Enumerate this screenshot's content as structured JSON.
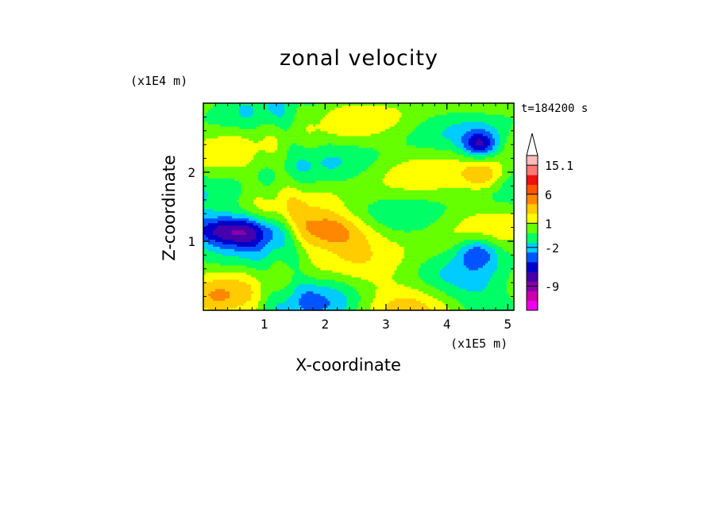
{
  "chart_data": {
    "type": "heatmap",
    "title": "zonal velocity",
    "xlabel": "X-coordinate",
    "ylabel": "Z-coordinate",
    "x_unit_label": "(x1E5 m)",
    "y_unit_label": "(x1E4 m)",
    "time_label": "t=184200 s",
    "xlim": [
      0,
      5.1
    ],
    "ylim": [
      0,
      3.0
    ],
    "x_ticks": [
      1,
      2,
      3,
      4,
      5
    ],
    "y_ticks": [
      1,
      2
    ],
    "x_minor_step": 0.2,
    "y_minor_step": 0.2,
    "colorbar": {
      "levels": [
        "#ee00ee",
        "#cc00aa",
        "#8800aa",
        "#4400aa",
        "#0000cc",
        "#0055ff",
        "#00ccff",
        "#00ff66",
        "#66ff00",
        "#ffff00",
        "#ffcc00",
        "#ff8800",
        "#ff5500",
        "#ee1111",
        "#ff7777",
        "#ffbbbb"
      ],
      "labels": [
        {
          "text": "15.1",
          "level": 15
        },
        {
          "text": "6",
          "level": 12
        },
        {
          "text": "1",
          "level": 9
        },
        {
          "text": "-2",
          "level": 6.5
        },
        {
          "text": "-9",
          "level": 2.5
        }
      ],
      "extend": "max"
    },
    "field_grid": {
      "nx": 60,
      "nz": 24,
      "seed_description": "approximate contour structure"
    }
  }
}
